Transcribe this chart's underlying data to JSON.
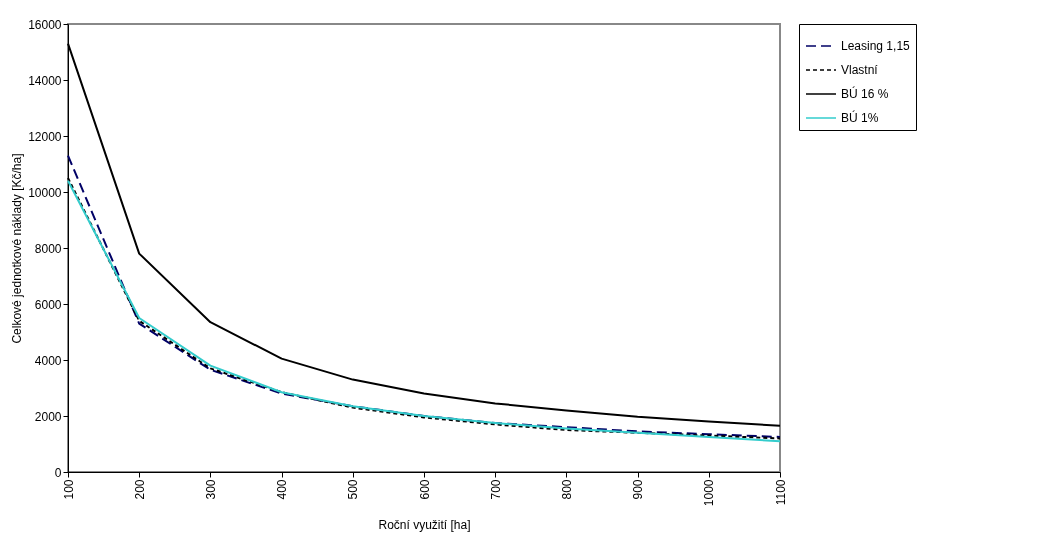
{
  "chart_data": {
    "type": "line",
    "xlabel": "Roční využití [ha]",
    "ylabel": "Celkové jednotkové náklady [Kč/ha]",
    "x": [
      100,
      200,
      300,
      400,
      500,
      600,
      700,
      800,
      900,
      1000,
      1100
    ],
    "series": [
      {
        "name": "Leasing 1,15",
        "color": "#000066",
        "line_style": "dashed",
        "values": [
          11300,
          5300,
          3650,
          2800,
          2350,
          2000,
          1750,
          1600,
          1450,
          1350,
          1250
        ]
      },
      {
        "name": "Vlastní",
        "color": "#000000",
        "line_style": "dotted",
        "values": [
          10500,
          5400,
          3700,
          2850,
          2300,
          1950,
          1700,
          1500,
          1400,
          1300,
          1200
        ]
      },
      {
        "name": "BÚ 16 %",
        "color": "#000000",
        "line_style": "solid",
        "values": [
          15300,
          7800,
          5350,
          4050,
          3300,
          2800,
          2450,
          2200,
          1970,
          1800,
          1650
        ]
      },
      {
        "name": "BÚ 1%",
        "color": "#33cccc",
        "line_style": "solid",
        "values": [
          10400,
          5500,
          3800,
          2850,
          2350,
          2000,
          1750,
          1550,
          1400,
          1250,
          1100
        ]
      }
    ],
    "xlim": [
      100,
      1100
    ],
    "xticks": [
      100,
      200,
      300,
      400,
      500,
      600,
      700,
      800,
      900,
      1000,
      1100
    ],
    "ylim": [
      0,
      16000
    ],
    "yticks": [
      0,
      2000,
      4000,
      6000,
      8000,
      10000,
      12000,
      14000,
      16000
    ],
    "grid": false,
    "legend": "right",
    "marker": "none"
  }
}
